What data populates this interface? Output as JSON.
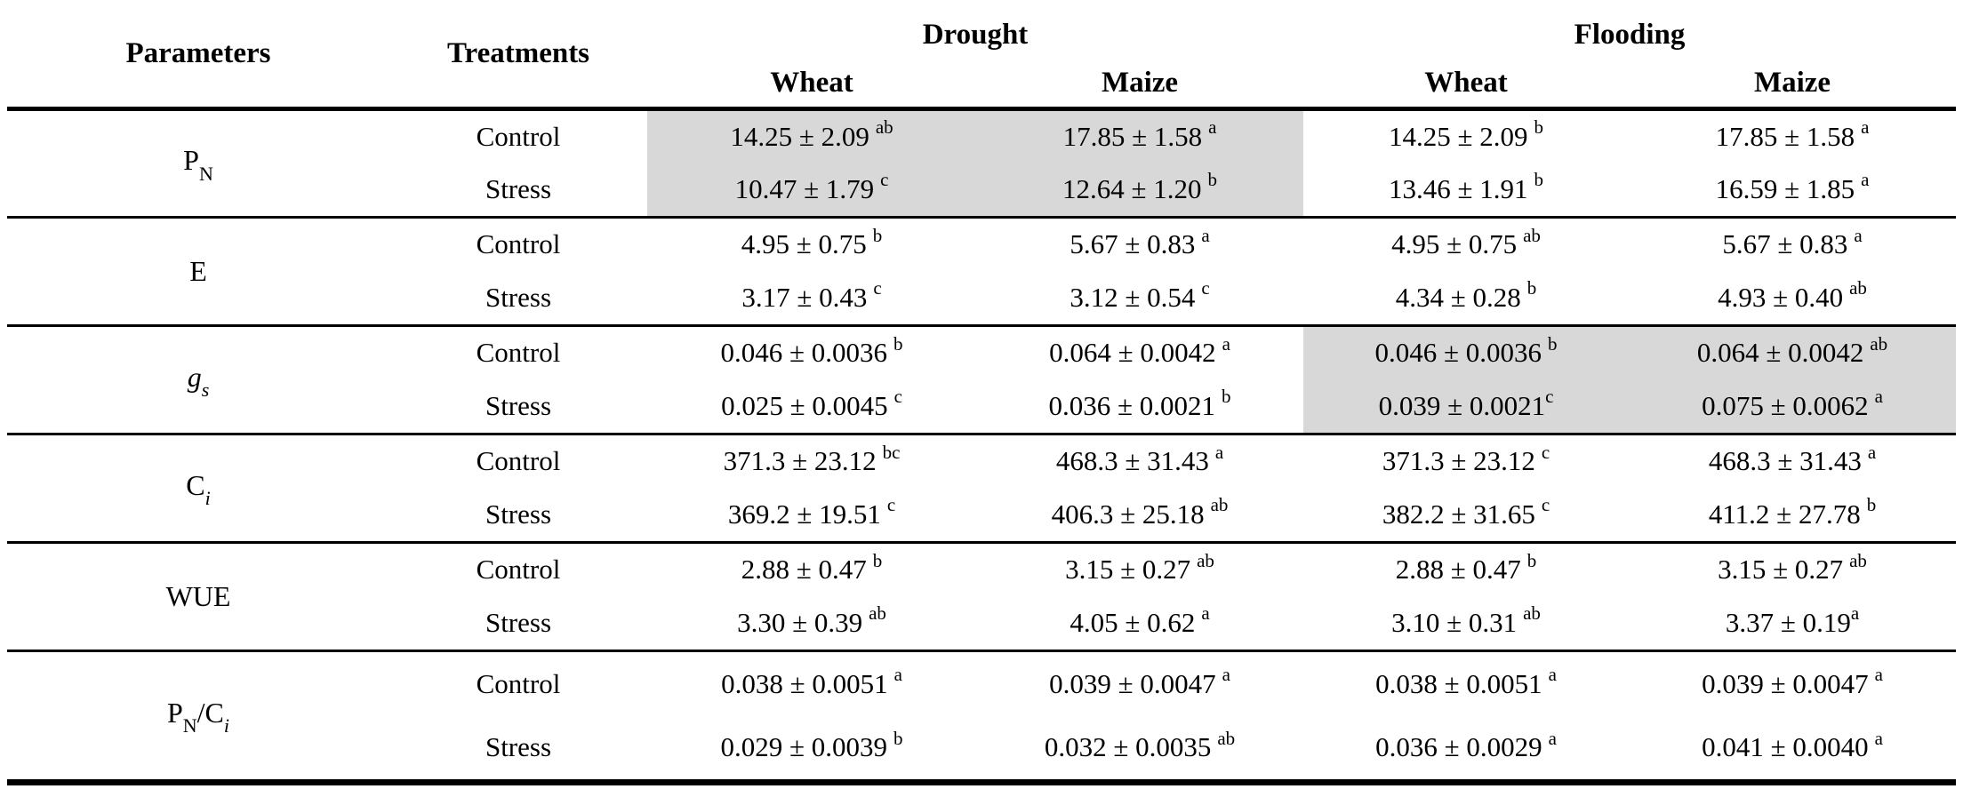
{
  "colors": {
    "background": "#ffffff",
    "text": "#000000",
    "rule": "#000000",
    "highlight": "#d8d8d8"
  },
  "header": {
    "parameters": "Parameters",
    "treatments": "Treatments",
    "groups": [
      {
        "label": "Drought",
        "cols": [
          "Wheat",
          "Maize"
        ]
      },
      {
        "label": "Flooding",
        "cols": [
          "Wheat",
          "Maize"
        ]
      }
    ]
  },
  "groups": [
    {
      "param": [
        {
          "t": "P"
        },
        {
          "t": "N",
          "sub": true
        }
      ],
      "rows": [
        {
          "treatment": "Control",
          "cells": [
            {
              "v": "14.25 ± 2.09",
              "s": "ab",
              "hl": true
            },
            {
              "v": "17.85 ± 1.58",
              "s": "a",
              "hl": true
            },
            {
              "v": "14.25 ± 2.09",
              "s": "b"
            },
            {
              "v": "17.85 ± 1.58",
              "s": "a"
            }
          ]
        },
        {
          "treatment": "Stress",
          "cells": [
            {
              "v": "10.47 ± 1.79",
              "s": "c",
              "hl": true
            },
            {
              "v": "12.64 ± 1.20",
              "s": "b",
              "hl": true
            },
            {
              "v": "13.46 ± 1.91",
              "s": "b"
            },
            {
              "v": "16.59 ± 1.85",
              "s": "a"
            }
          ]
        }
      ]
    },
    {
      "param": [
        {
          "t": "E"
        }
      ],
      "rows": [
        {
          "treatment": "Control",
          "cells": [
            {
              "v": "4.95 ± 0.75",
              "s": "b"
            },
            {
              "v": "5.67 ± 0.83",
              "s": "a"
            },
            {
              "v": "4.95 ± 0.75",
              "s": "ab"
            },
            {
              "v": "5.67 ± 0.83",
              "s": "a"
            }
          ]
        },
        {
          "treatment": "Stress",
          "cells": [
            {
              "v": "3.17 ± 0.43",
              "s": "c"
            },
            {
              "v": "3.12 ± 0.54",
              "s": "c"
            },
            {
              "v": "4.34 ± 0.28",
              "s": "b"
            },
            {
              "v": "4.93 ± 0.40",
              "s": "ab"
            }
          ]
        }
      ]
    },
    {
      "param": [
        {
          "t": "g",
          "it": true
        },
        {
          "t": "s",
          "sub": true,
          "it": true
        }
      ],
      "rows": [
        {
          "treatment": "Control",
          "cells": [
            {
              "v": "0.046 ± 0.0036",
              "s": "b"
            },
            {
              "v": "0.064 ± 0.0042",
              "s": "a"
            },
            {
              "v": "0.046 ± 0.0036",
              "s": "b",
              "hl": true
            },
            {
              "v": "0.064 ± 0.0042",
              "s": "ab",
              "hl": true
            }
          ]
        },
        {
          "treatment": "Stress",
          "cells": [
            {
              "v": "0.025 ± 0.0045",
              "s": "c"
            },
            {
              "v": "0.036 ± 0.0021",
              "s": "b"
            },
            {
              "v": "0.039 ± 0.0021",
              "s": "c",
              "hl": true,
              "tight": true
            },
            {
              "v": "0.075 ± 0.0062",
              "s": "a",
              "hl": true
            }
          ]
        }
      ]
    },
    {
      "param": [
        {
          "t": "C"
        },
        {
          "t": "i",
          "sub": true,
          "it": true
        }
      ],
      "rows": [
        {
          "treatment": "Control",
          "cells": [
            {
              "v": "371.3 ± 23.12",
              "s": "bc"
            },
            {
              "v": "468.3 ± 31.43",
              "s": "a"
            },
            {
              "v": "371.3 ± 23.12",
              "s": "c"
            },
            {
              "v": "468.3 ± 31.43",
              "s": "a"
            }
          ]
        },
        {
          "treatment": "Stress",
          "cells": [
            {
              "v": "369.2 ± 19.51",
              "s": "c"
            },
            {
              "v": "406.3 ± 25.18",
              "s": "ab"
            },
            {
              "v": "382.2 ± 31.65",
              "s": "c"
            },
            {
              "v": "411.2 ± 27.78",
              "s": "b"
            }
          ]
        }
      ]
    },
    {
      "param": [
        {
          "t": "WUE"
        }
      ],
      "rows": [
        {
          "treatment": "Control",
          "cells": [
            {
              "v": "2.88 ± 0.47",
              "s": "b"
            },
            {
              "v": "3.15 ± 0.27",
              "s": "ab"
            },
            {
              "v": "2.88 ± 0.47",
              "s": "b"
            },
            {
              "v": "3.15 ± 0.27",
              "s": "ab"
            }
          ]
        },
        {
          "treatment": "Stress",
          "cells": [
            {
              "v": "3.30 ± 0.39",
              "s": "ab"
            },
            {
              "v": "4.05 ± 0.62",
              "s": "a"
            },
            {
              "v": "3.10 ± 0.31",
              "s": "ab"
            },
            {
              "v": "3.37 ± 0.19",
              "s": "a",
              "tight": true
            }
          ]
        }
      ]
    },
    {
      "param": [
        {
          "t": "P"
        },
        {
          "t": "N",
          "sub": true
        },
        {
          "t": "/C"
        },
        {
          "t": "i",
          "sub": true,
          "it": true
        }
      ],
      "rows": [
        {
          "treatment": "Control",
          "cells": [
            {
              "v": "0.038 ± 0.0051",
              "s": "a"
            },
            {
              "v": "0.039 ± 0.0047",
              "s": "a"
            },
            {
              "v": "0.038 ± 0.0051",
              "s": "a"
            },
            {
              "v": "0.039 ± 0.0047",
              "s": "a"
            }
          ]
        },
        {
          "treatment": "Stress",
          "cells": [
            {
              "v": "0.029 ± 0.0039",
              "s": "b"
            },
            {
              "v": "0.032 ± 0.0035",
              "s": "ab"
            },
            {
              "v": "0.036 ± 0.0029",
              "s": "a"
            },
            {
              "v": "0.041 ± 0.0040",
              "s": "a"
            }
          ]
        }
      ]
    }
  ]
}
